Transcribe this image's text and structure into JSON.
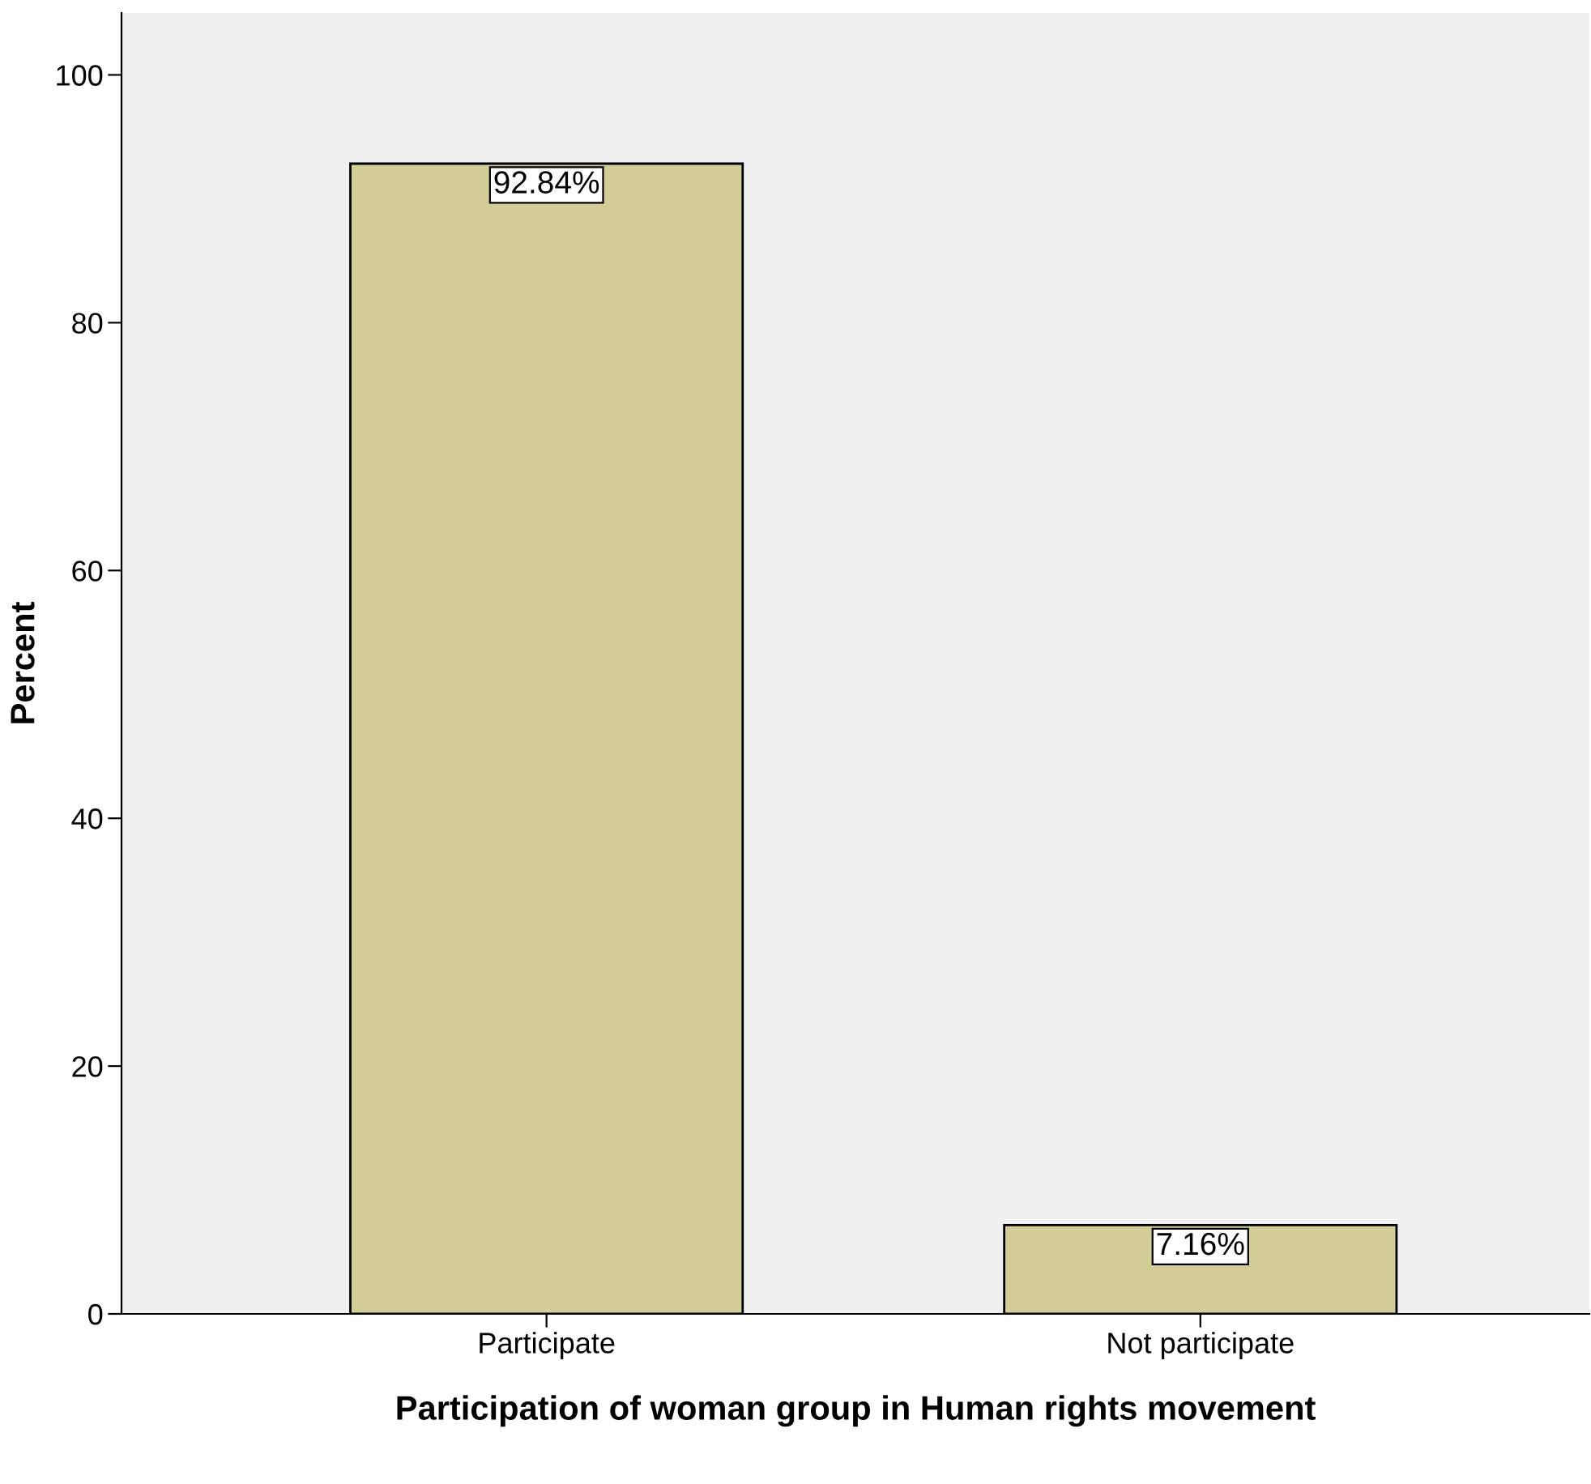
{
  "chart_data": {
    "type": "bar",
    "xlabel": "Participation of woman group in Human rights movement",
    "ylabel": "Percent",
    "categories": [
      "Participate",
      "Not participate"
    ],
    "values": [
      92.84,
      7.16
    ],
    "value_labels": [
      "92.84%",
      "7.16%"
    ],
    "color": "#d3ce97",
    "ylim": [
      0,
      105
    ],
    "yticks": [
      0,
      20,
      40,
      60,
      80,
      100
    ],
    "grid": false,
    "legend": false
  }
}
